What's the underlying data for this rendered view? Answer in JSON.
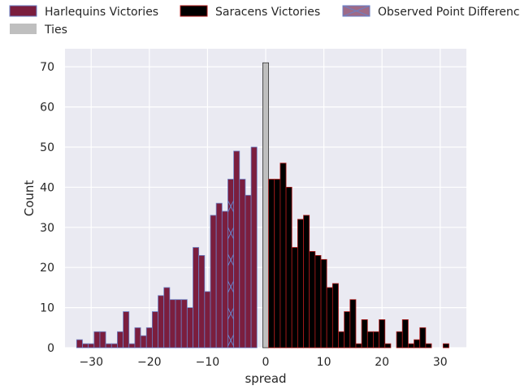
{
  "chart_data": {
    "type": "bar",
    "xlabel": "spread",
    "ylabel": "Count",
    "xlim": [
      -34.5,
      34.5
    ],
    "ylim": [
      0,
      74.5
    ],
    "xticks": [
      -30,
      -20,
      -10,
      0,
      10,
      20,
      30
    ],
    "yticks": [
      0,
      10,
      20,
      30,
      40,
      50,
      60,
      70
    ],
    "grid": true,
    "legend_placement": "top",
    "colors": {
      "harlequins": "#7b1e3e",
      "saracens": "#000000",
      "ties": "#bfbfbf",
      "observed": "#9e6a87",
      "plot_bg": "#eaeaf2",
      "edge_red": "#b01c1c",
      "edge_blue": "#6b7fc4"
    },
    "legend": [
      {
        "key": "harlequins",
        "label": "Harlequins Victories"
      },
      {
        "key": "ties",
        "label": "Ties"
      },
      {
        "key": "saracens",
        "label": "Saracens Victories"
      },
      {
        "key": "observed",
        "label": "Observed Point Difference"
      }
    ],
    "observed_point_difference": -6,
    "series": [
      {
        "key": "harlequins",
        "x": [
          -32,
          -31,
          -30,
          -29,
          -28,
          -27,
          -26,
          -25,
          -24,
          -23,
          -22,
          -21,
          -20,
          -19,
          -18,
          -17,
          -16,
          -15,
          -14,
          -13,
          -12,
          -11,
          -10,
          -9,
          -8,
          -7,
          -6,
          -5,
          -4,
          -3,
          -2,
          -1
        ],
        "values": [
          2,
          1,
          1,
          4,
          4,
          1,
          1,
          4,
          9,
          1,
          5,
          3,
          5,
          9,
          13,
          15,
          12,
          12,
          12,
          10,
          25,
          23,
          14,
          33,
          36,
          34,
          42,
          49,
          42,
          38,
          50,
          0
        ]
      },
      {
        "key": "ties",
        "x": [
          0
        ],
        "values": [
          71
        ]
      },
      {
        "key": "saracens",
        "x": [
          1,
          2,
          3,
          4,
          5,
          6,
          7,
          8,
          9,
          10,
          11,
          12,
          13,
          14,
          15,
          16,
          17,
          18,
          19,
          20,
          21,
          22,
          23,
          24,
          25,
          26,
          27,
          28,
          29,
          30,
          31
        ],
        "values": [
          42,
          42,
          46,
          40,
          25,
          32,
          33,
          24,
          23,
          22,
          15,
          16,
          4,
          9,
          12,
          1,
          7,
          4,
          4,
          7,
          1,
          0,
          4,
          7,
          1,
          2,
          5,
          1,
          0,
          0,
          1
        ]
      }
    ]
  }
}
